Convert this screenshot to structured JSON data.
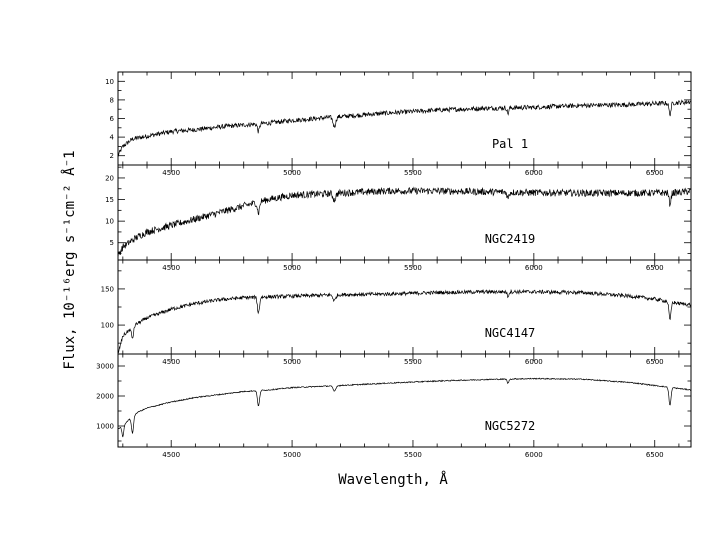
{
  "chart_data": {
    "type": "line",
    "xlabel": "Wavelength, Å",
    "ylabel": "Flux, 10⁻¹⁶erg s⁻¹cm⁻² Å⁻1",
    "xlim": [
      4280,
      6650
    ],
    "x_ticks": [
      4500,
      5000,
      5500,
      6000,
      6500
    ],
    "panels": [
      {
        "label": "Pal 1",
        "ylim": [
          1,
          11
        ],
        "y_ticks": [
          2,
          4,
          6,
          8,
          10
        ],
        "noise": 0.25,
        "x": [
          4280,
          4300,
          4340,
          4400,
          4500,
          4600,
          4700,
          4800,
          4900,
          5000,
          5200,
          5400,
          5600,
          5800,
          6000,
          6200,
          6400,
          6500,
          6600,
          6650
        ],
        "y": [
          2.0,
          3.0,
          3.8,
          4.1,
          4.6,
          4.8,
          5.1,
          5.3,
          5.5,
          5.8,
          6.2,
          6.6,
          6.9,
          7.1,
          7.2,
          7.4,
          7.5,
          7.6,
          7.7,
          7.8
        ],
        "absorption": [
          [
            4861,
            0.8,
            6
          ],
          [
            5175,
            1.0,
            8
          ],
          [
            5893,
            0.6,
            5
          ],
          [
            6563,
            1.2,
            6
          ]
        ]
      },
      {
        "label": "NGC2419",
        "ylim": [
          1,
          23
        ],
        "y_ticks": [
          5,
          10,
          15,
          20
        ],
        "noise": 0.8,
        "x": [
          4280,
          4300,
          4350,
          4400,
          4500,
          4600,
          4700,
          4800,
          4900,
          5000,
          5200,
          5400,
          5600,
          5800,
          6000,
          6200,
          6400,
          6600,
          6650
        ],
        "y": [
          2.0,
          4.0,
          6.0,
          7.5,
          9.0,
          10.5,
          12.0,
          13.5,
          15.0,
          16.0,
          16.5,
          17.0,
          17.0,
          16.8,
          16.6,
          16.5,
          16.5,
          16.6,
          17.0
        ],
        "absorption": [
          [
            4861,
            2.5,
            6
          ],
          [
            5175,
            1.5,
            8
          ],
          [
            5893,
            1.5,
            5
          ],
          [
            6563,
            2.5,
            6
          ]
        ]
      },
      {
        "label": "NGC4147",
        "ylim": [
          60,
          190
        ],
        "y_ticks": [
          100,
          150
        ],
        "noise": 2.5,
        "x": [
          4280,
          4300,
          4350,
          4400,
          4500,
          4600,
          4700,
          4800,
          4900,
          5000,
          5200,
          5400,
          5600,
          5800,
          6000,
          6200,
          6400,
          6500,
          6600,
          6650
        ],
        "y": [
          60,
          85,
          100,
          110,
          122,
          130,
          135,
          138,
          139,
          140,
          142,
          143,
          145,
          146,
          146,
          145,
          140,
          136,
          130,
          128
        ],
        "absorption": [
          [
            4340,
            15,
            6
          ],
          [
            4861,
            22,
            6
          ],
          [
            5175,
            8,
            8
          ],
          [
            5893,
            6,
            5
          ],
          [
            6563,
            25,
            6
          ]
        ]
      },
      {
        "label": "NGC5272",
        "ylim": [
          300,
          3400
        ],
        "y_ticks": [
          1000,
          2000,
          3000
        ],
        "noise": 18,
        "x": [
          4280,
          4300,
          4330,
          4360,
          4400,
          4500,
          4600,
          4700,
          4800,
          4900,
          5000,
          5200,
          5400,
          5600,
          5800,
          6000,
          6200,
          6400,
          6500,
          6600,
          6650
        ],
        "y": [
          900,
          1000,
          1250,
          1450,
          1600,
          1800,
          1950,
          2050,
          2150,
          2200,
          2280,
          2350,
          2430,
          2500,
          2550,
          2580,
          2560,
          2450,
          2350,
          2250,
          2200
        ],
        "absorption": [
          [
            4300,
            380,
            5
          ],
          [
            4340,
            550,
            6
          ],
          [
            4861,
            520,
            6
          ],
          [
            5175,
            180,
            8
          ],
          [
            5893,
            140,
            5
          ],
          [
            6563,
            600,
            6
          ]
        ]
      }
    ]
  }
}
